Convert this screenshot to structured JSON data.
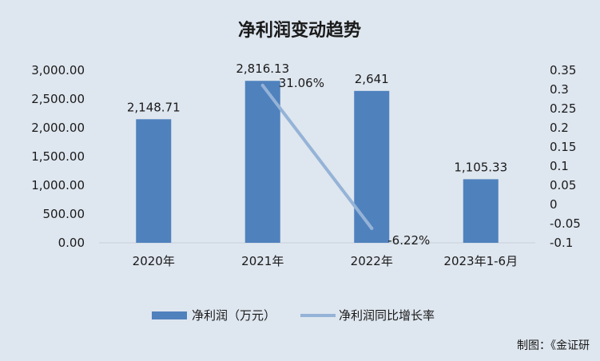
{
  "chart_data": {
    "type": "bar",
    "title": "净利润变动趋势",
    "categories": [
      "2020年",
      "2021年",
      "2022年",
      "2023年1-6月"
    ],
    "series": [
      {
        "name": "净利润（万元）",
        "type": "bar",
        "axis": "left",
        "values": [
          2148.71,
          2816.13,
          2641,
          1105.33
        ],
        "labels": [
          "2,148.71",
          "2,816.13",
          "2,641",
          "1,105.33"
        ],
        "color": "#4f81bd"
      },
      {
        "name": "净利润同比增长率",
        "type": "line",
        "axis": "right",
        "values": [
          null,
          0.3106,
          -0.0622,
          null
        ],
        "labels": [
          "",
          "31.06%",
          "-6.22%",
          ""
        ],
        "color": "#95b3d7"
      }
    ],
    "y_left": {
      "ylim": [
        0,
        3000
      ],
      "ticks": [
        0,
        500,
        1000,
        1500,
        2000,
        2500,
        3000
      ],
      "tick_labels": [
        "0.00",
        "500.00",
        "1,000.00",
        "1,500.00",
        "2,000.00",
        "2,500.00",
        "3,000.00"
      ]
    },
    "y_right": {
      "ylim": [
        -0.1,
        0.35
      ],
      "ticks": [
        -0.1,
        -0.05,
        0,
        0.05,
        0.1,
        0.15,
        0.2,
        0.25,
        0.3,
        0.35
      ],
      "tick_labels": [
        "-0.1",
        "-0.05",
        "0",
        "0.05",
        "0.1",
        "0.15",
        "0.2",
        "0.25",
        "0.3",
        "0.35"
      ]
    },
    "grid": false,
    "legend": "bottom",
    "credit": "制图：《金证研"
  },
  "colors": {
    "background": "#dee6ef",
    "text": "#1a1a1a"
  }
}
